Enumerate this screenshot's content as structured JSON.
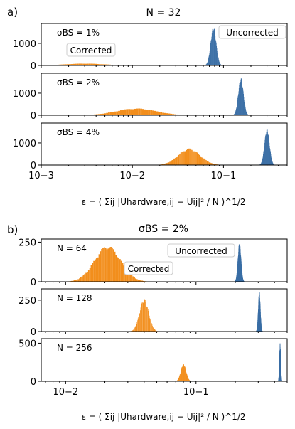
{
  "figure": {
    "panel_a": {
      "label": "a)",
      "title": "N = 32",
      "xlabel": "ε = ( Σij |Uhardware,ij − Uij|² / N )^1/2",
      "legend_uncorrected": "Uncorrected",
      "legend_corrected": "Corrected"
    },
    "panel_b": {
      "label": "b)",
      "title": "σBS = 2%",
      "xlabel": "ε = ( Σij |Uhardware,ij − Uij|² / N )^1/2",
      "legend_uncorrected": "Uncorrected",
      "legend_corrected": "Corrected"
    }
  },
  "colors": {
    "corrected": "#f28e1c",
    "uncorrected": "#3a6ea5",
    "corrected_text": "#f28e1c",
    "uncorrected_text": "#4a6e96"
  },
  "chart_data": [
    {
      "type": "bar",
      "title": "N = 32",
      "xscale": "log",
      "xlim": [
        0.001,
        0.5
      ],
      "xticks": [
        {
          "v": 0.001,
          "label": "10−3"
        },
        {
          "v": 0.01,
          "label": "10−2"
        },
        {
          "v": 0.1,
          "label": "10−1"
        }
      ],
      "ylabel": "",
      "subplots": [
        {
          "annotation": "σBS = 1%",
          "ylim": [
            0,
            1900
          ],
          "yticks": [
            0,
            1000
          ],
          "series": [
            {
              "name": "Corrected",
              "center": 0.003,
              "width": 0.22,
              "peak": 85
            },
            {
              "name": "Uncorrected",
              "center": 0.0775,
              "width": 0.03,
              "peak": 1750
            }
          ]
        },
        {
          "annotation": "σBS = 2%",
          "ylim": [
            0,
            1900
          ],
          "yticks": [
            0,
            1000
          ],
          "series": [
            {
              "name": "Corrected",
              "center": 0.011,
              "width": 0.22,
              "peak": 310
            },
            {
              "name": "Uncorrected",
              "center": 0.155,
              "width": 0.028,
              "peak": 1700
            }
          ]
        },
        {
          "annotation": "σBS = 4%",
          "ylim": [
            0,
            1900
          ],
          "yticks": [
            0,
            1000
          ],
          "series": [
            {
              "name": "Corrected",
              "center": 0.042,
              "width": 0.12,
              "peak": 750
            },
            {
              "name": "Uncorrected",
              "center": 0.3,
              "width": 0.027,
              "peak": 1650
            }
          ]
        }
      ]
    },
    {
      "type": "bar",
      "title": "σBS = 2%",
      "xscale": "log",
      "xlim": [
        0.0065,
        0.5
      ],
      "xticks": [
        {
          "v": 0.01,
          "label": "10−2"
        },
        {
          "v": 0.1,
          "label": "10−1"
        }
      ],
      "ylabel": "",
      "subplots": [
        {
          "annotation": "N = 64",
          "ylim": [
            0,
            270
          ],
          "yticks": [
            0,
            250
          ],
          "series": [
            {
              "name": "Corrected",
              "center": 0.021,
              "width": 0.1,
              "peak": 230
            },
            {
              "name": "Uncorrected",
              "center": 0.215,
              "width": 0.012,
              "peak": 250
            }
          ]
        },
        {
          "annotation": "N = 128",
          "ylim": [
            0,
            340
          ],
          "yticks": [
            0,
            250
          ],
          "series": [
            {
              "name": "Corrected",
              "center": 0.04,
              "width": 0.035,
              "peak": 260
            },
            {
              "name": "Uncorrected",
              "center": 0.305,
              "width": 0.008,
              "peak": 320
            }
          ]
        },
        {
          "annotation": "N = 256",
          "ylim": [
            0,
            560
          ],
          "yticks": [
            0,
            500
          ],
          "series": [
            {
              "name": "Corrected",
              "center": 0.08,
              "width": 0.02,
              "peak": 230
            },
            {
              "name": "Uncorrected",
              "center": 0.44,
              "width": 0.005,
              "peak": 500
            }
          ]
        }
      ]
    }
  ]
}
